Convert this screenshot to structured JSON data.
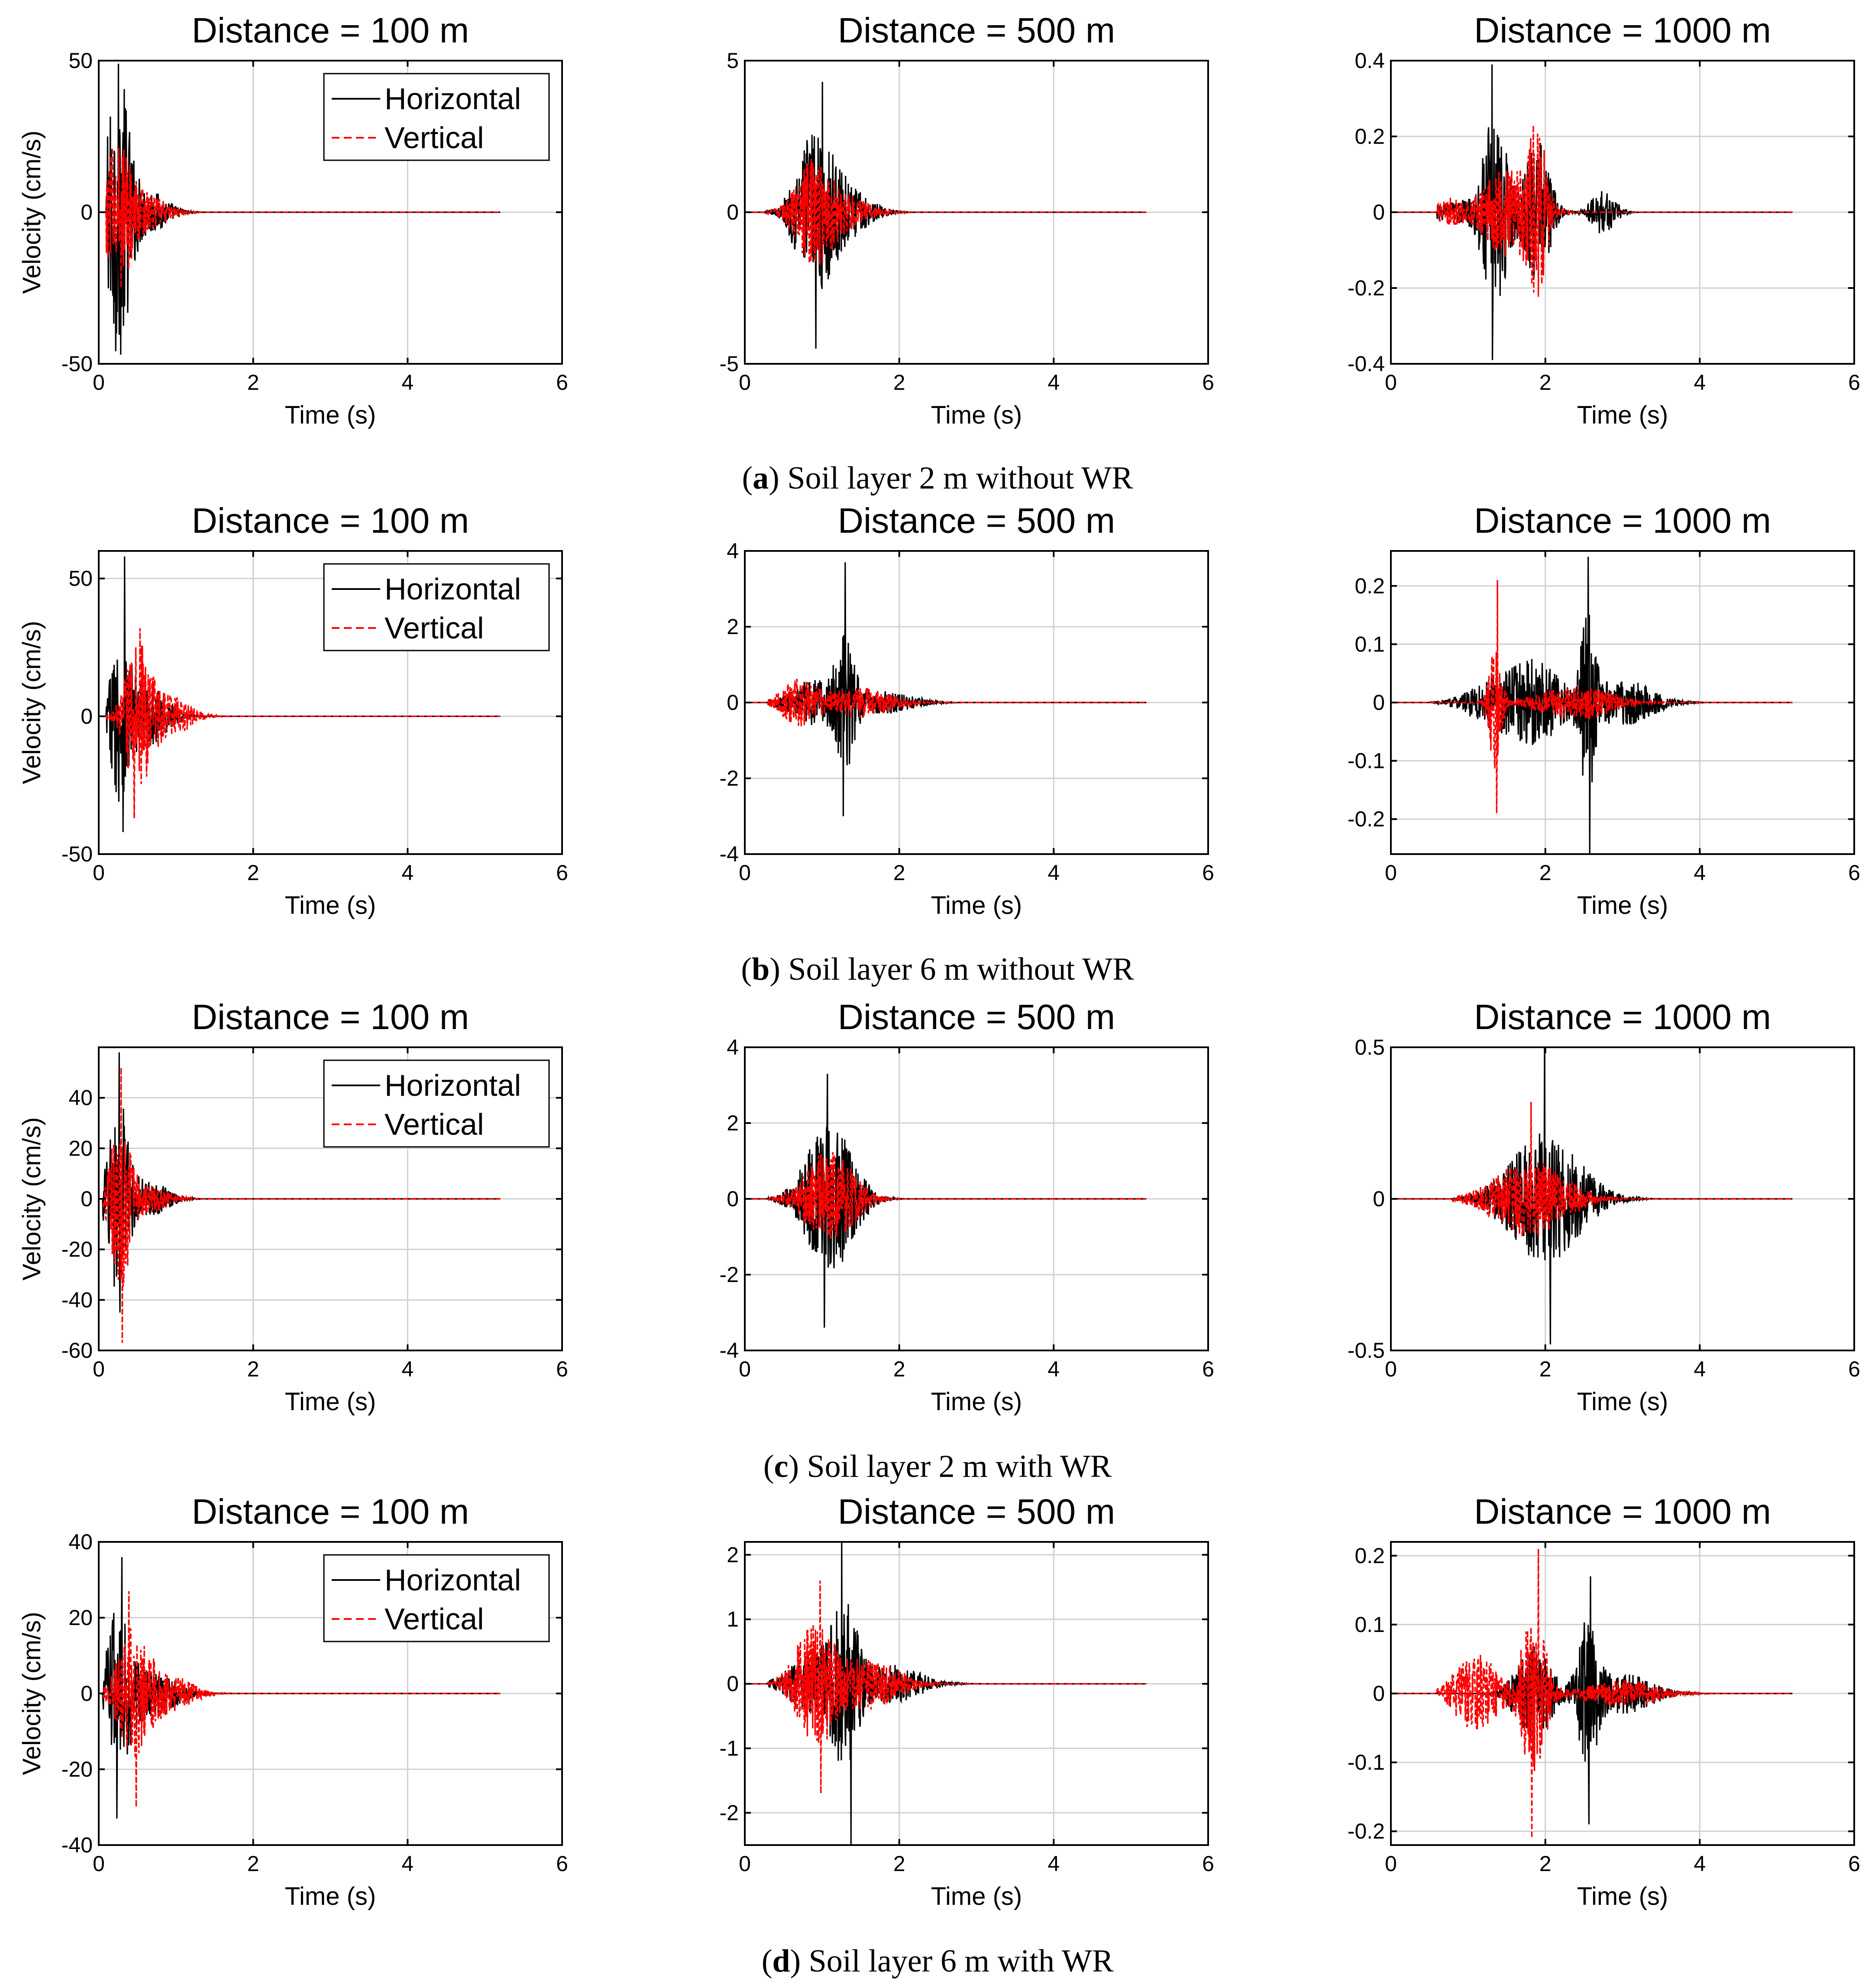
{
  "figure": {
    "rows": [
      {
        "caption_letter": "a",
        "caption_text": "Soil layer 2 m without WR"
      },
      {
        "caption_letter": "b",
        "caption_text": "Soil layer 6 m without WR"
      },
      {
        "caption_letter": "c",
        "caption_text": "Soil layer 2 m with WR"
      },
      {
        "caption_letter": "d",
        "caption_text": "Soil layer 6 m with WR"
      }
    ],
    "legend": {
      "horizontal": "Horizontal",
      "vertical": "Vertical"
    },
    "colors": {
      "horizontal": "#000000",
      "vertical": "#ff0000",
      "grid": "#d0d0d0"
    }
  },
  "chart_data": [
    {
      "type": "line",
      "row": 0,
      "col": 0,
      "title": "Distance = 100 m",
      "xlabel": "Time (s)",
      "ylabel": "Velocity (cm/s)",
      "xlim": [
        0,
        6
      ],
      "ylim": [
        -50,
        50
      ],
      "xticks": [
        0,
        2,
        4,
        6
      ],
      "yticks": [
        -50,
        0,
        50
      ],
      "grid": true,
      "legend": "top-right",
      "series": [
        {
          "name": "Horizontal",
          "style": "solid",
          "end": 5.2,
          "onset": 0.1,
          "bursts": [
            {
              "t": 0.25,
              "a": 46,
              "w": 0.18
            },
            {
              "t": 0.6,
              "a": 8,
              "w": 0.35
            }
          ],
          "peak_max": 49,
          "peak_min": -47
        },
        {
          "name": "Vertical",
          "style": "dashed",
          "end": 5.2,
          "onset": 0.1,
          "bursts": [
            {
              "t": 0.25,
              "a": 24,
              "w": 0.2
            },
            {
              "t": 0.6,
              "a": 6,
              "w": 0.35
            }
          ]
        }
      ]
    },
    {
      "type": "line",
      "row": 0,
      "col": 1,
      "title": "Distance = 500 m",
      "xlabel": "Time (s)",
      "ylabel": "",
      "xlim": [
        0,
        6
      ],
      "ylim": [
        -5,
        5
      ],
      "xticks": [
        0,
        2,
        4,
        6
      ],
      "yticks": [
        -5,
        0,
        5
      ],
      "grid": true,
      "series": [
        {
          "name": "Horizontal",
          "style": "solid",
          "end": 5.2,
          "onset": 0.25,
          "bursts": [
            {
              "t": 0.9,
              "a": 2.5,
              "w": 0.3
            },
            {
              "t": 1.3,
              "a": 0.8,
              "w": 0.4
            }
          ],
          "peak_max": 4.3,
          "peak_min": -4.5
        },
        {
          "name": "Vertical",
          "style": "dashed",
          "end": 5.2,
          "onset": 0.25,
          "bursts": [
            {
              "t": 0.9,
              "a": 1.7,
              "w": 0.3
            },
            {
              "t": 1.3,
              "a": 0.5,
              "w": 0.4
            }
          ]
        }
      ]
    },
    {
      "type": "line",
      "row": 0,
      "col": 2,
      "title": "Distance = 1000 m",
      "xlabel": "Time (s)",
      "ylabel": "",
      "xlim": [
        0,
        6
      ],
      "ylim": [
        -0.4,
        0.4
      ],
      "xticks": [
        0,
        2,
        4,
        6
      ],
      "yticks": [
        -0.4,
        -0.2,
        0,
        0.2,
        0.4
      ],
      "grid": true,
      "series": [
        {
          "name": "Horizontal",
          "style": "solid",
          "end": 5.2,
          "onset": 0.6,
          "bursts": [
            {
              "t": 1.35,
              "a": 0.25,
              "w": 0.2
            },
            {
              "t": 1.9,
              "a": 0.2,
              "w": 0.2
            },
            {
              "t": 2.75,
              "a": 0.06,
              "w": 0.2
            },
            {
              "t": 0.9,
              "a": 0.03,
              "w": 0.5
            }
          ],
          "peak_max": 0.39,
          "peak_min": -0.39
        },
        {
          "name": "Vertical",
          "style": "dashed",
          "end": 5.2,
          "onset": 0.6,
          "bursts": [
            {
              "t": 1.5,
              "a": 0.12,
              "w": 0.4
            },
            {
              "t": 1.9,
              "a": 0.2,
              "w": 0.15
            },
            {
              "t": 0.75,
              "a": 0.035,
              "w": 0.2
            }
          ]
        }
      ]
    },
    {
      "type": "line",
      "row": 1,
      "col": 0,
      "title": "Distance = 100 m",
      "xlabel": "Time (s)",
      "ylabel": "Velocity (cm/s)",
      "xlim": [
        0,
        6
      ],
      "ylim": [
        -50,
        60
      ],
      "xticks": [
        0,
        2,
        4,
        6
      ],
      "yticks": [
        -50,
        0,
        50
      ],
      "grid": true,
      "legend": "top-right",
      "series": [
        {
          "name": "Horizontal",
          "style": "solid",
          "end": 5.2,
          "onset": 0.1,
          "bursts": [
            {
              "t": 0.28,
              "a": 28,
              "w": 0.15
            },
            {
              "t": 0.6,
              "a": 12,
              "w": 0.35
            }
          ],
          "peak_max": 58,
          "peak_min": -42
        },
        {
          "name": "Vertical",
          "style": "dashed",
          "end": 5.2,
          "onset": 0.1,
          "bursts": [
            {
              "t": 0.5,
              "a": 26,
              "w": 0.2
            },
            {
              "t": 0.9,
              "a": 8,
              "w": 0.35
            }
          ],
          "peak_max": 32,
          "peak_min": -37
        }
      ]
    },
    {
      "type": "line",
      "row": 1,
      "col": 1,
      "title": "Distance = 500 m",
      "xlabel": "Time (s)",
      "ylabel": "",
      "xlim": [
        0,
        6
      ],
      "ylim": [
        -4,
        4
      ],
      "xticks": [
        0,
        2,
        4,
        6
      ],
      "yticks": [
        -4,
        -2,
        0,
        2,
        4
      ],
      "grid": true,
      "series": [
        {
          "name": "Horizontal",
          "style": "solid",
          "end": 5.2,
          "onset": 0.3,
          "bursts": [
            {
              "t": 1.3,
              "a": 1.6,
              "w": 0.15
            },
            {
              "t": 0.9,
              "a": 0.6,
              "w": 0.4
            },
            {
              "t": 1.8,
              "a": 0.3,
              "w": 0.5
            }
          ],
          "peak_max": 3.7,
          "peak_min": -3
        },
        {
          "name": "Vertical",
          "style": "dashed",
          "end": 5.2,
          "onset": 0.3,
          "bursts": [
            {
              "t": 0.7,
              "a": 0.6,
              "w": 0.3
            },
            {
              "t": 1.5,
              "a": 0.4,
              "w": 0.5
            }
          ]
        }
      ]
    },
    {
      "type": "line",
      "row": 1,
      "col": 2,
      "title": "Distance = 1000 m",
      "xlabel": "Time (s)",
      "ylabel": "",
      "xlim": [
        0,
        6
      ],
      "ylim": [
        -0.26,
        0.26
      ],
      "xticks": [
        0,
        2,
        4,
        6
      ],
      "yticks": [
        -0.2,
        -0.1,
        0,
        0.1,
        0.2
      ],
      "grid": true,
      "series": [
        {
          "name": "Horizontal",
          "style": "solid",
          "end": 5.2,
          "onset": 0.5,
          "bursts": [
            {
              "t": 1.3,
              "a": 0.04,
              "w": 0.4
            },
            {
              "t": 1.9,
              "a": 0.07,
              "w": 0.4
            },
            {
              "t": 2.55,
              "a": 0.14,
              "w": 0.12
            },
            {
              "t": 3.0,
              "a": 0.04,
              "w": 0.5
            }
          ],
          "peak_max": 0.25,
          "peak_min": -0.26
        },
        {
          "name": "Vertical",
          "style": "dashed",
          "end": 5.2,
          "onset": 0.5,
          "bursts": [
            {
              "t": 1.35,
              "a": 0.12,
              "w": 0.1
            },
            {
              "t": 2.4,
              "a": 0.03,
              "w": 0.6
            }
          ],
          "peak_max": 0.21,
          "peak_min": -0.19
        }
      ]
    },
    {
      "type": "line",
      "row": 2,
      "col": 0,
      "title": "Distance = 100 m",
      "xlabel": "Time (s)",
      "ylabel": "Velocity (cm/s)",
      "xlim": [
        0,
        6
      ],
      "ylim": [
        -60,
        60
      ],
      "xticks": [
        0,
        2,
        4,
        6
      ],
      "yticks": [
        -60,
        -40,
        -20,
        0,
        20,
        40
      ],
      "grid": true,
      "legend": "top-right",
      "series": [
        {
          "name": "Horizontal",
          "style": "solid",
          "end": 5.2,
          "onset": 0.05,
          "bursts": [
            {
              "t": 0.25,
              "a": 40,
              "w": 0.15
            },
            {
              "t": 0.6,
              "a": 8,
              "w": 0.35
            }
          ],
          "peak_max": 58,
          "peak_min": -45
        },
        {
          "name": "Vertical",
          "style": "dashed",
          "end": 5.2,
          "onset": 0.05,
          "bursts": [
            {
              "t": 0.28,
              "a": 35,
              "w": 0.15
            },
            {
              "t": 0.6,
              "a": 6,
              "w": 0.35
            }
          ],
          "peak_max": 52,
          "peak_min": -57
        }
      ]
    },
    {
      "type": "line",
      "row": 2,
      "col": 1,
      "title": "Distance = 500 m",
      "xlabel": "Time (s)",
      "ylabel": "",
      "xlim": [
        0,
        6
      ],
      "ylim": [
        -4,
        4
      ],
      "xticks": [
        0,
        2,
        4,
        6
      ],
      "yticks": [
        -4,
        -2,
        0,
        2,
        4
      ],
      "grid": true,
      "series": [
        {
          "name": "Horizontal",
          "style": "solid",
          "end": 5.2,
          "onset": 0.3,
          "bursts": [
            {
              "t": 1.1,
              "a": 2.0,
              "w": 0.4
            }
          ],
          "peak_max": 3.3,
          "peak_min": -3.4
        },
        {
          "name": "Vertical",
          "style": "dashed",
          "end": 5.2,
          "onset": 0.3,
          "bursts": [
            {
              "t": 1.1,
              "a": 1.3,
              "w": 0.4
            }
          ]
        }
      ]
    },
    {
      "type": "line",
      "row": 2,
      "col": 2,
      "title": "Distance = 1000 m",
      "xlabel": "Time (s)",
      "ylabel": "",
      "xlim": [
        0,
        6
      ],
      "ylim": [
        -0.5,
        0.5
      ],
      "xticks": [
        0,
        2,
        4,
        6
      ],
      "yticks": [
        -0.5,
        0,
        0.5
      ],
      "grid": true,
      "series": [
        {
          "name": "Horizontal",
          "style": "solid",
          "end": 5.2,
          "onset": 0.8,
          "bursts": [
            {
              "t": 2.0,
              "a": 0.22,
              "w": 0.6
            }
          ],
          "peak_max": 0.5,
          "peak_min": -0.48
        },
        {
          "name": "Vertical",
          "style": "dashed",
          "end": 5.2,
          "onset": 0.8,
          "bursts": [
            {
              "t": 1.8,
              "a": 0.13,
              "w": 0.6
            }
          ],
          "peak_max": 0.32
        }
      ]
    },
    {
      "type": "line",
      "row": 3,
      "col": 0,
      "title": "Distance = 100 m",
      "xlabel": "Time (s)",
      "ylabel": "Velocity (cm/s)",
      "xlim": [
        0,
        6
      ],
      "ylim": [
        -40,
        40
      ],
      "xticks": [
        0,
        2,
        4,
        6
      ],
      "yticks": [
        -40,
        -20,
        0,
        20,
        40
      ],
      "grid": true,
      "legend": "top-right",
      "series": [
        {
          "name": "Horizontal",
          "style": "solid",
          "end": 5.2,
          "onset": 0.05,
          "bursts": [
            {
              "t": 0.25,
              "a": 22,
              "w": 0.2
            },
            {
              "t": 0.7,
              "a": 6,
              "w": 0.4
            }
          ],
          "peak_max": 36,
          "peak_min": -33
        },
        {
          "name": "Vertical",
          "style": "dashed",
          "end": 5.2,
          "onset": 0.05,
          "bursts": [
            {
              "t": 0.45,
              "a": 18,
              "w": 0.25
            },
            {
              "t": 0.9,
              "a": 5,
              "w": 0.4
            }
          ],
          "peak_max": 27,
          "peak_min": -30
        }
      ]
    },
    {
      "type": "line",
      "row": 3,
      "col": 1,
      "title": "Distance = 500 m",
      "xlabel": "Time (s)",
      "ylabel": "",
      "xlim": [
        0,
        6
      ],
      "ylim": [
        -2.5,
        2.2
      ],
      "xticks": [
        0,
        2,
        4,
        6
      ],
      "yticks": [
        -2,
        -1,
        0,
        1,
        2
      ],
      "grid": true,
      "series": [
        {
          "name": "Horizontal",
          "style": "solid",
          "end": 5.2,
          "onset": 0.3,
          "bursts": [
            {
              "t": 1.3,
              "a": 1.2,
              "w": 0.2
            },
            {
              "t": 0.9,
              "a": 0.5,
              "w": 0.4
            },
            {
              "t": 1.9,
              "a": 0.3,
              "w": 0.5
            }
          ],
          "peak_max": 2.2,
          "peak_min": -2.5
        },
        {
          "name": "Vertical",
          "style": "dashed",
          "end": 5.2,
          "onset": 0.3,
          "bursts": [
            {
              "t": 0.9,
              "a": 1.0,
              "w": 0.3
            },
            {
              "t": 1.6,
              "a": 0.4,
              "w": 0.5
            }
          ],
          "peak_max": 1.6,
          "peak_min": -1.7
        }
      ]
    },
    {
      "type": "line",
      "row": 3,
      "col": 2,
      "title": "Distance = 1000 m",
      "xlabel": "Time (s)",
      "ylabel": "",
      "xlim": [
        0,
        6
      ],
      "ylim": [
        -0.22,
        0.22
      ],
      "xticks": [
        0,
        2,
        4,
        6
      ],
      "yticks": [
        -0.2,
        -0.1,
        0,
        0.1,
        0.2
      ],
      "grid": true,
      "series": [
        {
          "name": "Horizontal",
          "style": "solid",
          "end": 5.2,
          "onset": 0.6,
          "bursts": [
            {
              "t": 1.85,
              "a": 0.07,
              "w": 0.3
            },
            {
              "t": 2.55,
              "a": 0.11,
              "w": 0.15
            },
            {
              "t": 3.0,
              "a": 0.03,
              "w": 0.5
            }
          ],
          "peak_max": 0.17,
          "peak_min": -0.19
        },
        {
          "name": "Vertical",
          "style": "dashed",
          "end": 5.2,
          "onset": 0.6,
          "bursts": [
            {
              "t": 1.1,
              "a": 0.06,
              "w": 0.35
            },
            {
              "t": 1.85,
              "a": 0.12,
              "w": 0.2
            },
            {
              "t": 3.0,
              "a": 0.02,
              "w": 0.6
            }
          ],
          "peak_max": 0.21,
          "peak_min": -0.21
        }
      ]
    }
  ]
}
